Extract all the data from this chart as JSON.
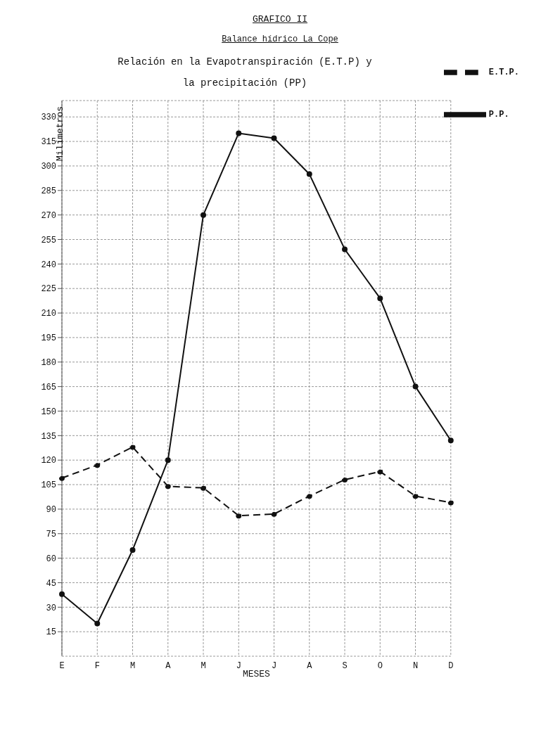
{
  "chart_data": {
    "type": "line",
    "title": "GRAFICO II",
    "subtitle": "Balance hídrico La Cope",
    "annotations": [
      "Relación en la Evapotranspiración (E.T.P) y la precipitación (PP)"
    ],
    "xlabel": "MESES",
    "ylabel": "Milímetros",
    "categories": [
      "E",
      "F",
      "M",
      "A",
      "M",
      "J",
      "J",
      "A",
      "S",
      "O",
      "N",
      "D"
    ],
    "series": [
      {
        "name": "E.T.P.",
        "color": "#111111",
        "line_style": "dashed",
        "values": [
          109,
          117,
          128,
          104,
          103,
          86,
          87,
          98,
          108,
          113,
          98,
          94
        ]
      },
      {
        "name": "P.P.",
        "color": "#111111",
        "line_style": "solid",
        "values": [
          38,
          20,
          65,
          120,
          270,
          320,
          317,
          295,
          249,
          219,
          165,
          132
        ]
      }
    ],
    "ylim": [
      0,
      340
    ],
    "yticks": [
      15,
      30,
      45,
      60,
      75,
      90,
      105,
      120,
      135,
      150,
      165,
      180,
      195,
      210,
      225,
      240,
      255,
      270,
      285,
      300,
      315,
      330
    ],
    "grid": true,
    "legend": "top right",
    "marker": "circle"
  }
}
